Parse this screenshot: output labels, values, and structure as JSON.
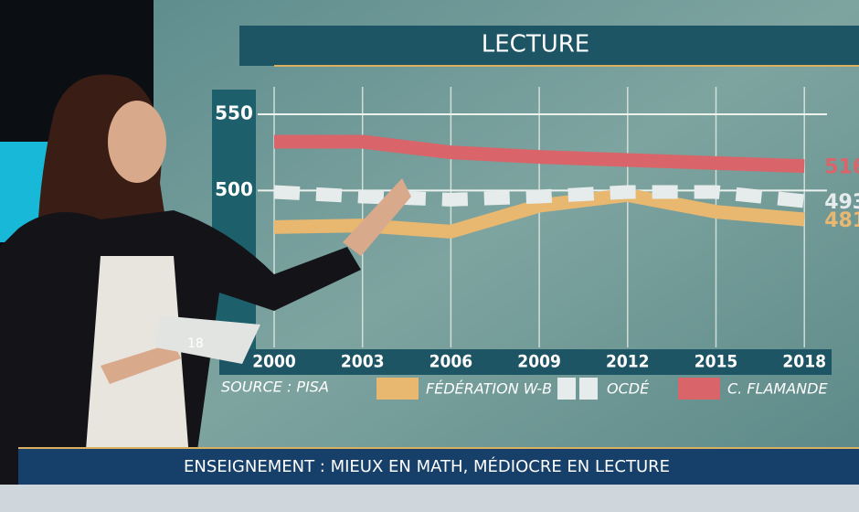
{
  "chart_data": {
    "type": "line",
    "title": "LECTURE",
    "source": "SOURCE : PISA",
    "categories": [
      "2000",
      "2003",
      "2006",
      "2009",
      "2012",
      "2015",
      "2018"
    ],
    "ylim": [
      400,
      565
    ],
    "yticks": [
      500,
      550
    ],
    "grid": true,
    "series": [
      {
        "name": "FÉDÉRATION W-B",
        "color": "#e8b770",
        "values": [
          476,
          477,
          473,
          490,
          497,
          486,
          481
        ],
        "value_labels": [
          null,
          null,
          null,
          null,
          null,
          null,
          "481"
        ]
      },
      {
        "name": "OCDÉ",
        "color": "#e6eceb",
        "values": [
          499,
          496,
          494,
          496,
          499,
          499,
          493
        ],
        "value_labels": [
          null,
          null,
          null,
          null,
          null,
          null,
          "493"
        ]
      },
      {
        "name": "C. FLAMANDE",
        "color": "#d9656a",
        "values": [
          532,
          532,
          525,
          522,
          520,
          518,
          516
        ],
        "value_labels": [
          null,
          null,
          null,
          null,
          null,
          null,
          "516"
        ]
      }
    ]
  },
  "card_text": "18",
  "ticker": "ENSEIGNEMENT : MIEUX EN MATH, MÉDIOCRE EN LECTURE"
}
